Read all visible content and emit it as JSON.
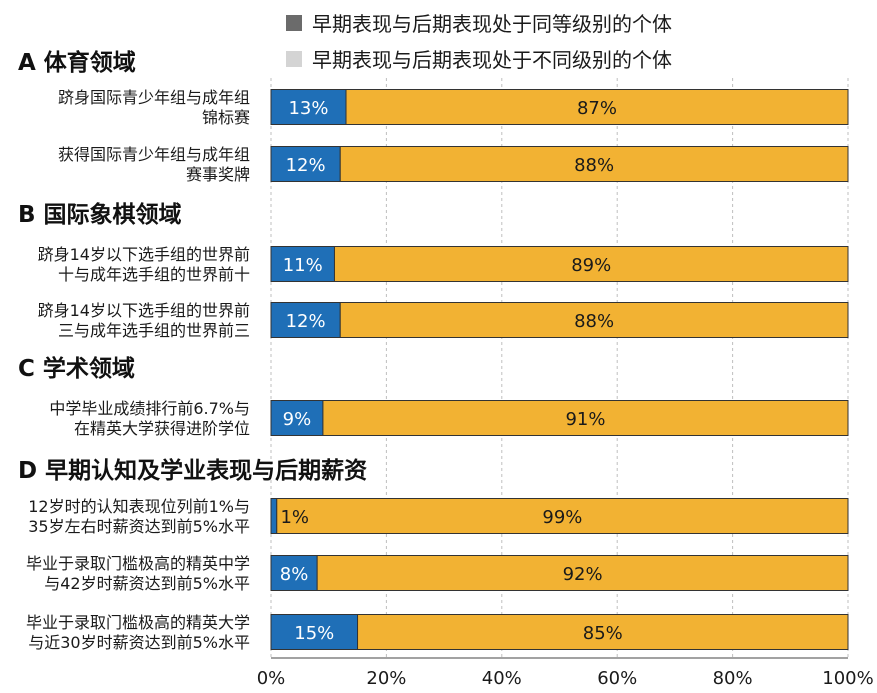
{
  "chart_data": {
    "type": "bar",
    "orientation": "horizontal",
    "stacked": true,
    "legend": {
      "placement": "top-right",
      "items": [
        {
          "label": "早期表现与后期表现处于同等级别的个体",
          "swatch_color": "#6b6b6b"
        },
        {
          "label": "早期表现与后期表现处于不同级别的个体",
          "swatch_color": "#d4d4d4"
        }
      ]
    },
    "colors": {
      "same": "#1f6fb7",
      "different": "#f2b233",
      "bar_border": "#333333",
      "grid": "#bfbfbf"
    },
    "xlim": [
      0,
      100
    ],
    "x_ticks": [
      "0%",
      "20%",
      "40%",
      "60%",
      "80%",
      "100%"
    ],
    "sections": [
      {
        "title": "A 体育领域",
        "rows": [
          {
            "label": [
              "跻身国际青少年组与成年组",
              "锦标赛"
            ],
            "same": 13,
            "different": 87,
            "same_label": "13%",
            "different_label": "87%"
          },
          {
            "label": [
              "获得国际青少年组与成年组",
              "赛事奖牌"
            ],
            "same": 12,
            "different": 88,
            "same_label": "12%",
            "different_label": "88%"
          }
        ]
      },
      {
        "title": "B 国际象棋领域",
        "rows": [
          {
            "label": [
              "跻身14岁以下选手组的世界前",
              "十与成年选手组的世界前十"
            ],
            "same": 11,
            "different": 89,
            "same_label": "11%",
            "different_label": "89%"
          },
          {
            "label": [
              "跻身14岁以下选手组的世界前",
              "三与成年选手组的世界前三"
            ],
            "same": 12,
            "different": 88,
            "same_label": "12%",
            "different_label": "88%"
          }
        ]
      },
      {
        "title": "C 学术领域",
        "rows": [
          {
            "label": [
              "中学毕业成绩排行前6.7%与",
              "在精英大学获得进阶学位"
            ],
            "same": 9,
            "different": 91,
            "same_label": "9%",
            "different_label": "91%"
          }
        ]
      },
      {
        "title": "D 早期认知及学业表现与后期薪资",
        "rows": [
          {
            "label": [
              "12岁时的认知表现位列前1%与",
              "35岁左右时薪资达到前5%水平"
            ],
            "same": 1,
            "different": 99,
            "same_label": "1%",
            "different_label": "99%"
          },
          {
            "label": [
              "毕业于录取门槛极高的精英中学",
              "与42岁时薪资达到前5%水平"
            ],
            "same": 8,
            "different": 92,
            "same_label": "8%",
            "different_label": "92%"
          },
          {
            "label": [
              "毕业于录取门槛极高的精英大学",
              "与近30岁时薪资达到前5%水平"
            ],
            "same": 15,
            "different": 85,
            "same_label": "15%",
            "different_label": "85%"
          }
        ]
      }
    ]
  }
}
